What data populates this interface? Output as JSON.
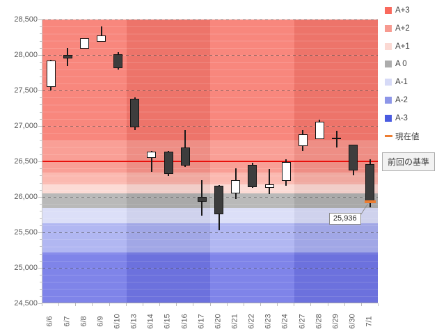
{
  "chart_data": {
    "type": "candlestick",
    "title": "",
    "x": [
      "6/6",
      "6/7",
      "6/8",
      "6/9",
      "6/10",
      "6/13",
      "6/14",
      "6/15",
      "6/16",
      "6/17",
      "6/20",
      "6/21",
      "6/22",
      "6/23",
      "6/24",
      "6/27",
      "6/28",
      "6/29",
      "6/30",
      "7/1"
    ],
    "y_axis": {
      "min": 24500,
      "max": 28500,
      "major_step": 500,
      "minor_step": 100,
      "tick_labels": [
        "28,500",
        "28,000",
        "27,500",
        "27,000",
        "26,500",
        "26,000",
        "25,500",
        "25,000",
        "24,500"
      ]
    },
    "grid": true,
    "candles": [
      {
        "date": "6/6",
        "open": 27550,
        "high": 27930,
        "low": 27500,
        "close": 27925,
        "direction": "up"
      },
      {
        "date": "6/7",
        "open": 28000,
        "high": 28100,
        "low": 27845,
        "close": 27950,
        "direction": "down"
      },
      {
        "date": "6/8",
        "open": 28090,
        "high": 28240,
        "low": 28085,
        "close": 28235,
        "direction": "up"
      },
      {
        "date": "6/9",
        "open": 28185,
        "high": 28400,
        "low": 28185,
        "close": 28270,
        "direction": "up"
      },
      {
        "date": "6/10",
        "open": 28005,
        "high": 28040,
        "low": 27795,
        "close": 27810,
        "direction": "down"
      },
      {
        "date": "6/13",
        "open": 27385,
        "high": 27400,
        "low": 26940,
        "close": 26980,
        "direction": "down"
      },
      {
        "date": "6/14",
        "open": 26550,
        "high": 26645,
        "low": 26355,
        "close": 26640,
        "direction": "up"
      },
      {
        "date": "6/15",
        "open": 26635,
        "high": 26650,
        "low": 26295,
        "close": 26325,
        "direction": "down"
      },
      {
        "date": "6/16",
        "open": 26700,
        "high": 26945,
        "low": 26420,
        "close": 26440,
        "direction": "down"
      },
      {
        "date": "6/17",
        "open": 26000,
        "high": 26240,
        "low": 25735,
        "close": 25930,
        "direction": "down"
      },
      {
        "date": "6/20",
        "open": 26160,
        "high": 26165,
        "low": 25525,
        "close": 25750,
        "direction": "down"
      },
      {
        "date": "6/21",
        "open": 26045,
        "high": 26405,
        "low": 25970,
        "close": 26240,
        "direction": "up"
      },
      {
        "date": "6/22",
        "open": 26455,
        "high": 26480,
        "low": 26130,
        "close": 26135,
        "direction": "down"
      },
      {
        "date": "6/23",
        "open": 26130,
        "high": 26395,
        "low": 26035,
        "close": 26175,
        "direction": "up"
      },
      {
        "date": "6/24",
        "open": 26225,
        "high": 26525,
        "low": 26155,
        "close": 26490,
        "direction": "up"
      },
      {
        "date": "6/27",
        "open": 26715,
        "high": 26945,
        "low": 26650,
        "close": 26880,
        "direction": "up"
      },
      {
        "date": "6/28",
        "open": 26815,
        "high": 27085,
        "low": 26810,
        "close": 27060,
        "direction": "up"
      },
      {
        "date": "6/29",
        "open": 26835,
        "high": 26930,
        "low": 26695,
        "close": 26825,
        "direction": "down"
      },
      {
        "date": "6/30",
        "open": 26735,
        "high": 26740,
        "low": 26305,
        "close": 26375,
        "direction": "down"
      },
      {
        "date": "7/1",
        "open": 26460,
        "high": 26525,
        "low": 25855,
        "close": 25936,
        "direction": "down"
      }
    ],
    "baseline": {
      "value": 26500,
      "label": "前回の基準",
      "color": "#E8100C"
    },
    "current_value": {
      "value": 25936,
      "label": "25,936",
      "color": "#ED7D31"
    },
    "legend": {
      "position": "right",
      "items": [
        {
          "label": "A+3",
          "color": "#F9695D",
          "shape": "square"
        },
        {
          "label": "A+2",
          "color": "#F79A90",
          "shape": "square"
        },
        {
          "label": "A+1",
          "color": "#FBD9D3",
          "shape": "square"
        },
        {
          "label": "A 0",
          "color": "#ACACAC",
          "shape": "square"
        },
        {
          "label": "A-1",
          "color": "#D6DAF7",
          "shape": "square"
        },
        {
          "label": "A-2",
          "color": "#8D96E8",
          "shape": "square"
        },
        {
          "label": "A-3",
          "color": "#4A5BE0",
          "shape": "square"
        },
        {
          "label": "現在値",
          "color": "#ED7D31",
          "shape": "dash"
        }
      ]
    },
    "background_bands": [
      {
        "from": 26790,
        "to": 28500,
        "color": "#F87A6F"
      },
      {
        "from": 26340,
        "to": 26790,
        "color": "#F9958B"
      },
      {
        "from": 26180,
        "to": 26340,
        "color": "#FBB1A8"
      },
      {
        "from": 26050,
        "to": 26180,
        "color": "#FCD7D1"
      },
      {
        "from": 25840,
        "to": 26050,
        "color": "#B1B1B1"
      },
      {
        "from": 25625,
        "to": 25840,
        "color": "#D9DCF8"
      },
      {
        "from": 25220,
        "to": 25625,
        "color": "#A9AFF1"
      },
      {
        "from": 24500,
        "to": 25220,
        "color": "#7177E7"
      }
    ]
  }
}
